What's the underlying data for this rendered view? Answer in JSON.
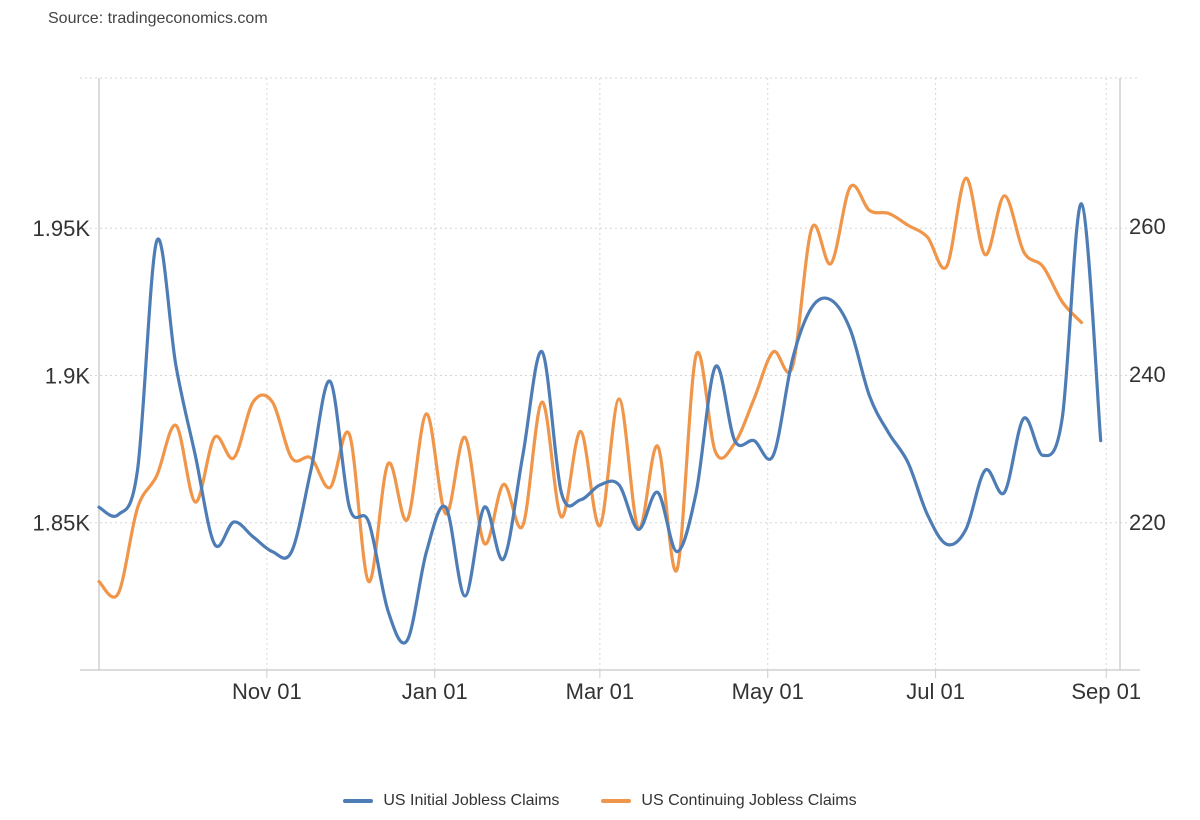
{
  "source": "Source: tradingeconomics.com",
  "chart_data": {
    "type": "line",
    "grid": true,
    "legend_position": "bottom-center",
    "x_ticks": [
      "Nov 01",
      "Jan 01",
      "Mar 01",
      "May 01",
      "Jul 01",
      "Sep 01"
    ],
    "x_range": [
      "2023-09-01",
      "2024-09-06"
    ],
    "y_left": {
      "ticks": [
        "1.85K",
        "1.9K",
        "1.95K"
      ],
      "tick_values": [
        1850,
        1900,
        1950
      ],
      "range": [
        1800,
        2001
      ]
    },
    "y_right": {
      "ticks": [
        "220",
        "240",
        "260"
      ],
      "tick_values": [
        220,
        240,
        260
      ],
      "range": [
        200,
        280
      ]
    },
    "series": [
      {
        "name": "US Continuing Jobless Claims",
        "axis": "left",
        "unit": "thousands",
        "color": "#f0964a",
        "points": [
          [
            "2023-09-01",
            1830
          ],
          [
            "2023-09-08",
            1826
          ],
          [
            "2023-09-15",
            1855
          ],
          [
            "2023-09-22",
            1866
          ],
          [
            "2023-09-29",
            1883
          ],
          [
            "2023-10-06",
            1857
          ],
          [
            "2023-10-13",
            1879
          ],
          [
            "2023-10-20",
            1872
          ],
          [
            "2023-10-27",
            1891
          ],
          [
            "2023-11-03",
            1891
          ],
          [
            "2023-11-10",
            1872
          ],
          [
            "2023-11-17",
            1872
          ],
          [
            "2023-11-24",
            1862
          ],
          [
            "2023-12-01",
            1880
          ],
          [
            "2023-12-08",
            1830
          ],
          [
            "2023-12-15",
            1870
          ],
          [
            "2023-12-22",
            1851
          ],
          [
            "2023-12-29",
            1887
          ],
          [
            "2024-01-05",
            1853
          ],
          [
            "2024-01-12",
            1879
          ],
          [
            "2024-01-19",
            1843
          ],
          [
            "2024-01-26",
            1863
          ],
          [
            "2024-02-02",
            1849
          ],
          [
            "2024-02-09",
            1891
          ],
          [
            "2024-02-16",
            1852
          ],
          [
            "2024-02-23",
            1881
          ],
          [
            "2024-03-01",
            1849
          ],
          [
            "2024-03-08",
            1892
          ],
          [
            "2024-03-15",
            1848
          ],
          [
            "2024-03-22",
            1876
          ],
          [
            "2024-03-29",
            1834
          ],
          [
            "2024-04-05",
            1907
          ],
          [
            "2024-04-12",
            1874
          ],
          [
            "2024-04-19",
            1877
          ],
          [
            "2024-04-26",
            1892
          ],
          [
            "2024-05-03",
            1908
          ],
          [
            "2024-05-10",
            1903
          ],
          [
            "2024-05-17",
            1950
          ],
          [
            "2024-05-24",
            1938
          ],
          [
            "2024-05-31",
            1964
          ],
          [
            "2024-06-07",
            1956
          ],
          [
            "2024-06-14",
            1955
          ],
          [
            "2024-06-21",
            1951
          ],
          [
            "2024-06-28",
            1947
          ],
          [
            "2024-07-05",
            1937
          ],
          [
            "2024-07-12",
            1967
          ],
          [
            "2024-07-19",
            1941
          ],
          [
            "2024-07-26",
            1961
          ],
          [
            "2024-08-02",
            1942
          ],
          [
            "2024-08-09",
            1937
          ],
          [
            "2024-08-16",
            1925
          ],
          [
            "2024-08-23",
            1918
          ]
        ]
      },
      {
        "name": "US Initial Jobless Claims",
        "axis": "right",
        "unit": "thousands",
        "color": "#4e7db6",
        "points": [
          [
            "2023-09-01",
            222
          ],
          [
            "2023-09-08",
            221
          ],
          [
            "2023-09-15",
            227
          ],
          [
            "2023-09-22",
            258
          ],
          [
            "2023-09-29",
            241
          ],
          [
            "2023-10-06",
            229
          ],
          [
            "2023-10-13",
            217
          ],
          [
            "2023-10-20",
            220
          ],
          [
            "2023-10-27",
            218
          ],
          [
            "2023-11-03",
            216
          ],
          [
            "2023-11-10",
            216
          ],
          [
            "2023-11-17",
            227
          ],
          [
            "2023-11-24",
            239
          ],
          [
            "2023-12-01",
            222
          ],
          [
            "2023-12-08",
            220
          ],
          [
            "2023-12-15",
            208
          ],
          [
            "2023-12-22",
            204
          ],
          [
            "2023-12-29",
            216
          ],
          [
            "2024-01-05",
            222
          ],
          [
            "2024-01-12",
            210
          ],
          [
            "2024-01-19",
            222
          ],
          [
            "2024-01-26",
            215
          ],
          [
            "2024-02-02",
            229
          ],
          [
            "2024-02-09",
            243
          ],
          [
            "2024-02-16",
            224
          ],
          [
            "2024-02-23",
            223
          ],
          [
            "2024-03-01",
            225
          ],
          [
            "2024-03-08",
            225
          ],
          [
            "2024-03-15",
            219
          ],
          [
            "2024-03-22",
            224
          ],
          [
            "2024-03-29",
            216
          ],
          [
            "2024-04-05",
            224
          ],
          [
            "2024-04-12",
            241
          ],
          [
            "2024-04-19",
            231
          ],
          [
            "2024-04-26",
            231
          ],
          [
            "2024-05-03",
            229
          ],
          [
            "2024-05-10",
            242
          ],
          [
            "2024-05-17",
            249
          ],
          [
            "2024-05-24",
            250
          ],
          [
            "2024-05-31",
            246
          ],
          [
            "2024-06-07",
            237
          ],
          [
            "2024-06-14",
            232
          ],
          [
            "2024-06-21",
            228
          ],
          [
            "2024-06-28",
            221
          ],
          [
            "2024-07-05",
            217
          ],
          [
            "2024-07-12",
            219
          ],
          [
            "2024-07-19",
            227
          ],
          [
            "2024-07-26",
            224
          ],
          [
            "2024-08-02",
            234
          ],
          [
            "2024-08-09",
            229
          ],
          [
            "2024-08-16",
            234
          ],
          [
            "2024-08-23",
            263
          ],
          [
            "2024-08-30",
            231
          ]
        ]
      }
    ],
    "legend": [
      {
        "name": "US Initial Jobless Claims",
        "color": "#4e7db6"
      },
      {
        "name": "US Continuing Jobless Claims",
        "color": "#f0964a"
      }
    ]
  }
}
